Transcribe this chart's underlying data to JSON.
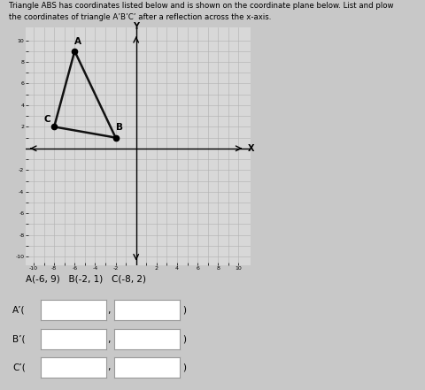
{
  "title_line1": "Triangle ABS has coordinates listed below and is shown on the coordinate plane below. List and plow",
  "title_line2": "the coordinates of triangle A’B’C’ after a reflection across the x-axis.",
  "A": [
    -6,
    9
  ],
  "B": [
    -2,
    1
  ],
  "C": [
    -8,
    2
  ],
  "xlim": [
    -10,
    10
  ],
  "ylim": [
    -10,
    10
  ],
  "grid_color": "#b0b0b0",
  "axis_color": "#000000",
  "triangle_color": "#111111",
  "label_A": "A",
  "label_B": "B",
  "label_C": "C",
  "coords_text": "A(-6, 9)   B(-2, 1)   C(-8, 2)",
  "bg_color": "#c8c8c8",
  "plot_bg": "#d8d8d8",
  "input_label_A": "A’(",
  "input_label_B": "B’(",
  "input_label_C": "C’("
}
